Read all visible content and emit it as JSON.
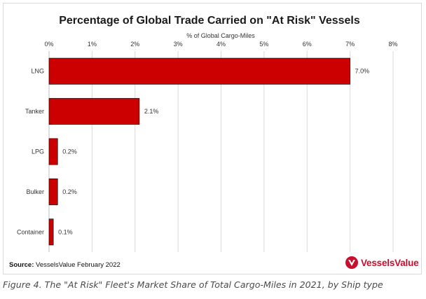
{
  "chart_data": {
    "type": "bar",
    "orientation": "horizontal",
    "title": "Percentage of Global Trade Carried on \"At Risk\" Vessels",
    "xlabel": "% of Global Cargo-Miles",
    "ylabel": "",
    "categories": [
      "LNG",
      "Tanker",
      "LPG",
      "Bulker",
      "Container"
    ],
    "values": [
      7.0,
      2.1,
      0.2,
      0.2,
      0.1
    ],
    "value_labels": [
      "7.0%",
      "2.1%",
      "0.2%",
      "0.2%",
      "0.1%"
    ],
    "xlim": [
      0,
      8
    ],
    "x_ticks": [
      "0%",
      "1%",
      "2%",
      "3%",
      "4%",
      "5%",
      "6%",
      "7%",
      "8%"
    ],
    "x_axis_position": "top",
    "grid": true,
    "bar_color": "#cc0000"
  },
  "source": {
    "label": "Source:",
    "text": "VesselsValue February 2022"
  },
  "logo": {
    "text": "VesselsValue",
    "color": "#c8102e",
    "icon": "vesselsvalue-logo-icon"
  },
  "caption": "Figure 4. The \"At Risk\" Fleet's Market Share of Total Cargo-Miles in 2021, by Ship type"
}
